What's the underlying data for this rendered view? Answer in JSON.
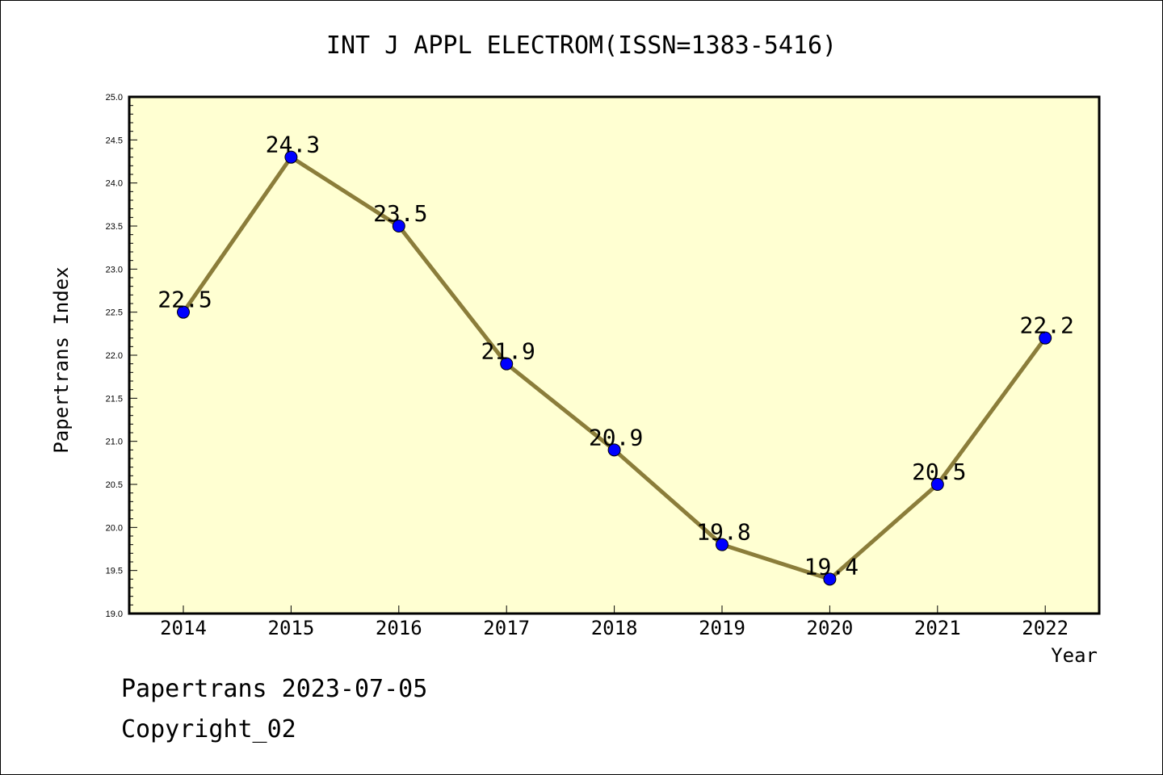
{
  "chart_data": {
    "type": "line",
    "title": "INT J APPL ELECTROM(ISSN=1383-5416)",
    "xlabel": "Year",
    "ylabel": "Papertrans Index",
    "categories": [
      "2014",
      "2015",
      "2016",
      "2017",
      "2018",
      "2019",
      "2020",
      "2021",
      "2022"
    ],
    "values": [
      22.5,
      24.3,
      23.5,
      21.9,
      20.9,
      19.8,
      19.4,
      20.5,
      22.2
    ],
    "value_labels": [
      "22.5",
      "24.3",
      "23.5",
      "21.9",
      "20.9",
      "19.8",
      "19.4",
      "20.5",
      "22.2"
    ],
    "ylim": [
      19.0,
      25.0
    ],
    "yticks": [
      "19.0",
      "19.5",
      "20.0",
      "20.5",
      "21.0",
      "21.5",
      "22.0",
      "22.5",
      "23.0",
      "23.5",
      "24.0",
      "24.5",
      "25.0"
    ],
    "grid": false,
    "colors": {
      "plot_background": "#ffffd2",
      "line": "#8b7d3a",
      "marker": "#0000ff"
    }
  },
  "footer": {
    "date_line": "Papertrans 2023-07-05",
    "copyright": "Copyright_02"
  }
}
